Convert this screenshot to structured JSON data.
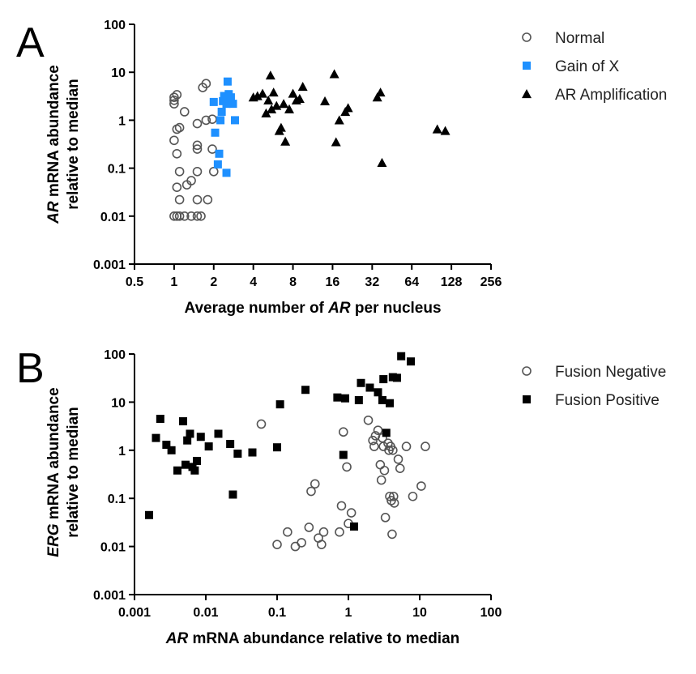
{
  "chart_data": [
    {
      "panel": "A",
      "type": "scatter",
      "x_scale": "log2",
      "y_scale": "log10",
      "xlim": [
        0.5,
        256
      ],
      "ylim": [
        0.001,
        100
      ],
      "x_ticks": [
        "0.5",
        "1",
        "2",
        "4",
        "8",
        "16",
        "32",
        "64",
        "128",
        "256"
      ],
      "y_ticks": [
        "0.001",
        "0.01",
        "0.1",
        "1",
        "10",
        "100"
      ],
      "xlabel": {
        "prefix": "Average number of ",
        "italic": "AR",
        "suffix": " per nucleus"
      },
      "ylabel": {
        "line1_italic": "AR",
        "line1_rest": " mRNA abundance",
        "line2": "relative to median"
      },
      "legend_position": "right",
      "series": [
        {
          "name": "Normal",
          "marker": "open-circle",
          "color": "#555555",
          "points": [
            [
              1.0,
              0.01
            ],
            [
              1.05,
              0.01
            ],
            [
              1.1,
              0.01
            ],
            [
              1.2,
              0.01
            ],
            [
              1.35,
              0.01
            ],
            [
              1.5,
              0.01
            ],
            [
              1.6,
              0.01
            ],
            [
              1.1,
              0.022
            ],
            [
              1.5,
              0.022
            ],
            [
              1.8,
              0.022
            ],
            [
              1.05,
              0.04
            ],
            [
              1.25,
              0.045
            ],
            [
              1.35,
              0.055
            ],
            [
              1.5,
              0.085
            ],
            [
              1.1,
              0.085
            ],
            [
              1.05,
              0.2
            ],
            [
              1.0,
              0.38
            ],
            [
              1.5,
              0.3
            ],
            [
              1.5,
              0.25
            ],
            [
              1.95,
              0.25
            ],
            [
              1.05,
              0.65
            ],
            [
              1.1,
              0.7
            ],
            [
              1.5,
              0.85
            ],
            [
              1.75,
              1.0
            ],
            [
              1.95,
              1.05
            ],
            [
              1.2,
              1.5
            ],
            [
              1.0,
              2.2
            ],
            [
              1.0,
              2.6
            ],
            [
              1.0,
              3.0
            ],
            [
              1.05,
              3.4
            ],
            [
              1.65,
              4.8
            ],
            [
              1.75,
              5.8
            ],
            [
              2.0,
              0.085
            ]
          ]
        },
        {
          "name": "Gain of X",
          "marker": "filled-square",
          "color": "#1e90ff",
          "points": [
            [
              2.0,
              2.4
            ],
            [
              2.05,
              0.55
            ],
            [
              2.15,
              0.12
            ],
            [
              2.2,
              0.2
            ],
            [
              2.25,
              1.0
            ],
            [
              2.3,
              1.5
            ],
            [
              2.35,
              2.5
            ],
            [
              2.4,
              3.2
            ],
            [
              2.5,
              0.08
            ],
            [
              2.5,
              2.2
            ],
            [
              2.55,
              6.4
            ],
            [
              2.6,
              3.5
            ],
            [
              2.7,
              3.0
            ],
            [
              2.8,
              2.2
            ],
            [
              2.9,
              1.0
            ]
          ]
        },
        {
          "name": "AR Amplification",
          "marker": "filled-triangle",
          "color": "#000000",
          "points": [
            [
              4.0,
              3.0
            ],
            [
              4.3,
              3.2
            ],
            [
              4.7,
              3.6
            ],
            [
              5.0,
              1.4
            ],
            [
              5.2,
              2.6
            ],
            [
              5.4,
              8.6
            ],
            [
              5.5,
              1.7
            ],
            [
              5.7,
              3.8
            ],
            [
              6.0,
              2.0
            ],
            [
              6.3,
              0.6
            ],
            [
              6.5,
              0.7
            ],
            [
              6.8,
              2.2
            ],
            [
              7.0,
              0.36
            ],
            [
              7.5,
              1.7
            ],
            [
              8.0,
              3.6
            ],
            [
              8.5,
              2.6
            ],
            [
              9.0,
              2.8
            ],
            [
              9.5,
              5.0
            ],
            [
              14.0,
              2.5
            ],
            [
              16.5,
              9.2
            ],
            [
              17.0,
              0.35
            ],
            [
              18.0,
              1.0
            ],
            [
              20.0,
              1.5
            ],
            [
              21.0,
              1.8
            ],
            [
              35.0,
              3.0
            ],
            [
              37.0,
              3.8
            ],
            [
              38.0,
              0.13
            ],
            [
              100.0,
              0.65
            ],
            [
              115.0,
              0.6
            ]
          ]
        }
      ]
    },
    {
      "panel": "B",
      "type": "scatter",
      "x_scale": "log10",
      "y_scale": "log10",
      "xlim": [
        0.001,
        100
      ],
      "ylim": [
        0.001,
        100
      ],
      "x_ticks": [
        "0.001",
        "0.01",
        "0.1",
        "1",
        "10",
        "100"
      ],
      "y_ticks": [
        "0.001",
        "0.01",
        "0.1",
        "1",
        "10",
        "100"
      ],
      "xlabel": {
        "prefix": "",
        "italic": "AR",
        "suffix": " mRNA abundance relative to median"
      },
      "ylabel": {
        "line1_italic": "ERG",
        "line1_rest": " mRNA abundance",
        "line2": "relative to median"
      },
      "legend_position": "right",
      "series": [
        {
          "name": "Fusion Negative",
          "marker": "open-circle",
          "color": "#555555",
          "points": [
            [
              0.06,
              3.5
            ],
            [
              0.1,
              0.011
            ],
            [
              0.14,
              0.02
            ],
            [
              0.18,
              0.01
            ],
            [
              0.22,
              0.012
            ],
            [
              0.28,
              0.025
            ],
            [
              0.3,
              0.14
            ],
            [
              0.34,
              0.2
            ],
            [
              0.38,
              0.015
            ],
            [
              0.42,
              0.011
            ],
            [
              0.45,
              0.02
            ],
            [
              0.75,
              0.02
            ],
            [
              0.8,
              0.07
            ],
            [
              0.85,
              2.4
            ],
            [
              0.95,
              0.45
            ],
            [
              1.0,
              0.03
            ],
            [
              1.1,
              0.05
            ],
            [
              1.9,
              4.2
            ],
            [
              2.2,
              1.6
            ],
            [
              2.3,
              1.2
            ],
            [
              2.4,
              2.0
            ],
            [
              2.6,
              2.6
            ],
            [
              2.8,
              0.5
            ],
            [
              2.9,
              0.24
            ],
            [
              3.0,
              1.8
            ],
            [
              3.1,
              1.2
            ],
            [
              3.2,
              0.38
            ],
            [
              3.3,
              0.04
            ],
            [
              3.6,
              1.4
            ],
            [
              3.7,
              1.0
            ],
            [
              3.8,
              0.11
            ],
            [
              3.9,
              1.2
            ],
            [
              4.0,
              0.09
            ],
            [
              4.1,
              0.018
            ],
            [
              4.2,
              1.0
            ],
            [
              4.3,
              0.11
            ],
            [
              4.4,
              0.08
            ],
            [
              5.0,
              0.65
            ],
            [
              5.3,
              0.42
            ],
            [
              6.5,
              1.2
            ],
            [
              8.0,
              0.11
            ],
            [
              10.5,
              0.18
            ],
            [
              12.0,
              1.2
            ]
          ]
        },
        {
          "name": "Fusion Positive",
          "marker": "filled-square",
          "color": "#000000",
          "points": [
            [
              0.0016,
              0.045
            ],
            [
              0.002,
              1.8
            ],
            [
              0.0023,
              4.5
            ],
            [
              0.0028,
              1.3
            ],
            [
              0.0033,
              1.0
            ],
            [
              0.004,
              0.38
            ],
            [
              0.0048,
              4.0
            ],
            [
              0.0052,
              0.5
            ],
            [
              0.0055,
              1.6
            ],
            [
              0.006,
              2.2
            ],
            [
              0.0065,
              0.45
            ],
            [
              0.007,
              0.38
            ],
            [
              0.0075,
              0.6
            ],
            [
              0.0085,
              1.9
            ],
            [
              0.011,
              1.2
            ],
            [
              0.015,
              2.2
            ],
            [
              0.022,
              1.35
            ],
            [
              0.024,
              0.12
            ],
            [
              0.028,
              0.85
            ],
            [
              0.045,
              0.9
            ],
            [
              0.1,
              1.15
            ],
            [
              0.11,
              9.0
            ],
            [
              0.25,
              18.0
            ],
            [
              0.7,
              12.5
            ],
            [
              0.85,
              0.8
            ],
            [
              0.9,
              12.0
            ],
            [
              1.2,
              0.026
            ],
            [
              1.4,
              11.0
            ],
            [
              1.5,
              25.0
            ],
            [
              2.0,
              20.0
            ],
            [
              2.6,
              16.0
            ],
            [
              3.0,
              11.0
            ],
            [
              3.1,
              30.0
            ],
            [
              3.4,
              2.3
            ],
            [
              3.8,
              9.5
            ],
            [
              4.2,
              33.0
            ],
            [
              4.8,
              32.0
            ],
            [
              5.5,
              90.0
            ],
            [
              7.5,
              70.0
            ]
          ]
        }
      ]
    }
  ]
}
